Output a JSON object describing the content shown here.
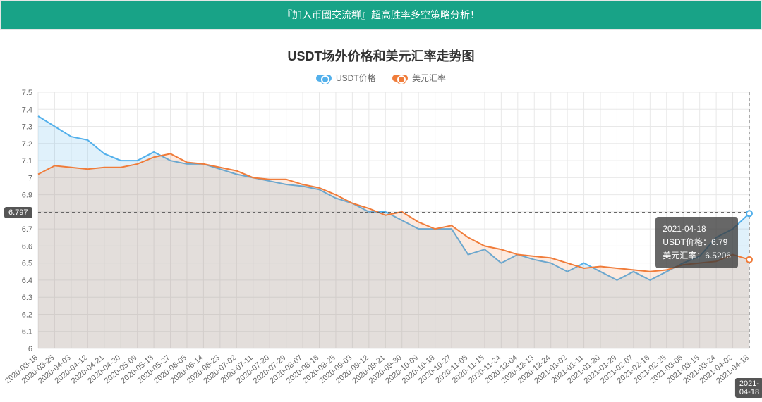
{
  "banner": {
    "text": "『加入币圈交流群』超高胜率多空策略分析！"
  },
  "chart": {
    "type": "line",
    "title": "USDT场外价格和美元汇率走势图",
    "title_fontsize": 18,
    "background_color": "#ffffff",
    "grid_color": "#e8e8e8",
    "axis_color": "#666666",
    "line_width": 2,
    "marker_radius": 2,
    "y_axis": {
      "min": 6.0,
      "max": 7.5,
      "step": 0.1,
      "label_fontsize": 11
    },
    "x_axis": {
      "labels": [
        "2020-03-16",
        "2020-03-25",
        "2020-04-03",
        "2020-04-12",
        "2020-04-21",
        "2020-04-30",
        "2020-05-09",
        "2020-05-18",
        "2020-05-27",
        "2020-06-05",
        "2020-06-14",
        "2020-06-23",
        "2020-07-02",
        "2020-07-11",
        "2020-07-20",
        "2020-07-29",
        "2020-08-07",
        "2020-08-16",
        "2020-08-25",
        "2020-09-03",
        "2020-09-12",
        "2020-09-21",
        "2020-09-30",
        "2020-10-09",
        "2020-10-18",
        "2020-10-27",
        "2020-11-05",
        "2020-11-15",
        "2020-11-24",
        "2020-12-04",
        "2020-12-13",
        "2020-12-24",
        "2021-01-02",
        "2021-01-11",
        "2021-01-20",
        "2021-01-29",
        "2021-02-07",
        "2021-02-16",
        "2021-02-25",
        "2021-03-06",
        "2021-03-15",
        "2021-03-24",
        "2021-04-02",
        "2021-04-18"
      ],
      "label_fontsize": 11,
      "label_rotation": -40
    },
    "legend": {
      "position": "top",
      "fontsize": 12,
      "items": [
        "USDT价格",
        "美元汇率"
      ]
    },
    "series": [
      {
        "name": "USDT价格",
        "color": "#53b0eb",
        "fill_color": "rgba(83,176,235,0.18)",
        "values": [
          7.36,
          7.3,
          7.24,
          7.22,
          7.14,
          7.1,
          7.1,
          7.15,
          7.1,
          7.08,
          7.08,
          7.05,
          7.02,
          7.0,
          6.98,
          6.96,
          6.95,
          6.93,
          6.88,
          6.85,
          6.8,
          6.8,
          6.75,
          6.7,
          6.7,
          6.7,
          6.55,
          6.58,
          6.5,
          6.55,
          6.52,
          6.5,
          6.45,
          6.5,
          6.45,
          6.4,
          6.45,
          6.4,
          6.45,
          6.5,
          6.54,
          6.65,
          6.7,
          6.79
        ]
      },
      {
        "name": "美元汇率",
        "color": "#f07c3a",
        "fill_color": "rgba(240,124,58,0.16)",
        "values": [
          7.02,
          7.07,
          7.06,
          7.05,
          7.06,
          7.06,
          7.08,
          7.12,
          7.14,
          7.09,
          7.08,
          7.06,
          7.04,
          7.0,
          6.99,
          6.99,
          6.96,
          6.94,
          6.9,
          6.85,
          6.82,
          6.78,
          6.8,
          6.74,
          6.7,
          6.72,
          6.65,
          6.6,
          6.58,
          6.55,
          6.54,
          6.53,
          6.5,
          6.47,
          6.48,
          6.47,
          6.46,
          6.45,
          6.46,
          6.49,
          6.5,
          6.51,
          6.55,
          6.52
        ]
      }
    ],
    "crosshair": {
      "y_value": 6.797,
      "y_label": "6.797",
      "x_label": "2021-04-18",
      "line_color": "#555555",
      "dash": "4 4"
    },
    "tooltip": {
      "date": "2021-04-18",
      "rows": [
        {
          "label": "USDT价格",
          "value": "6.79",
          "color": "#53b0eb"
        },
        {
          "label": "美元汇率",
          "value": "6.5206",
          "color": "#f07c3a"
        }
      ],
      "bg": "rgba(60,60,60,0.78)"
    }
  }
}
